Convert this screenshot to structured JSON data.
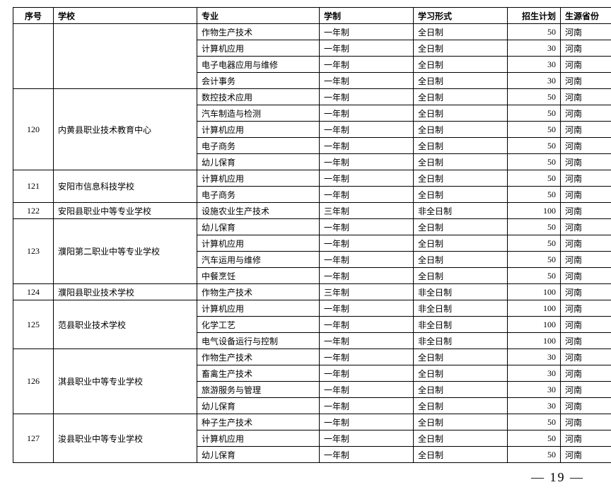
{
  "headers": {
    "seq": "序号",
    "school": "学校",
    "major": "专业",
    "system": "学制",
    "mode": "学习形式",
    "plan": "招生计划",
    "province": "生源省份"
  },
  "groups": [
    {
      "seq": "",
      "school": "",
      "rows": [
        {
          "major": "作物生产技术",
          "system": "一年制",
          "mode": "全日制",
          "plan": "50",
          "province": "河南"
        },
        {
          "major": "计算机应用",
          "system": "一年制",
          "mode": "全日制",
          "plan": "30",
          "province": "河南"
        },
        {
          "major": "电子电器应用与维修",
          "system": "一年制",
          "mode": "全日制",
          "plan": "30",
          "province": "河南"
        },
        {
          "major": "会计事务",
          "system": "一年制",
          "mode": "全日制",
          "plan": "30",
          "province": "河南"
        }
      ]
    },
    {
      "seq": "120",
      "school": "内黄县职业技术教育中心",
      "rows": [
        {
          "major": "数控技术应用",
          "system": "一年制",
          "mode": "全日制",
          "plan": "50",
          "province": "河南"
        },
        {
          "major": "汽车制造与检测",
          "system": "一年制",
          "mode": "全日制",
          "plan": "50",
          "province": "河南"
        },
        {
          "major": "计算机应用",
          "system": "一年制",
          "mode": "全日制",
          "plan": "50",
          "province": "河南"
        },
        {
          "major": "电子商务",
          "system": "一年制",
          "mode": "全日制",
          "plan": "50",
          "province": "河南"
        },
        {
          "major": "幼儿保育",
          "system": "一年制",
          "mode": "全日制",
          "plan": "50",
          "province": "河南"
        }
      ]
    },
    {
      "seq": "121",
      "school": "安阳市信息科技学校",
      "rows": [
        {
          "major": "计算机应用",
          "system": "一年制",
          "mode": "全日制",
          "plan": "50",
          "province": "河南"
        },
        {
          "major": "电子商务",
          "system": "一年制",
          "mode": "全日制",
          "plan": "50",
          "province": "河南"
        }
      ]
    },
    {
      "seq": "122",
      "school": "安阳县职业中等专业学校",
      "rows": [
        {
          "major": "设施农业生产技术",
          "system": "三年制",
          "mode": "非全日制",
          "plan": "100",
          "province": "河南"
        }
      ]
    },
    {
      "seq": "123",
      "school": "濮阳第二职业中等专业学校",
      "rows": [
        {
          "major": "幼儿保育",
          "system": "一年制",
          "mode": "全日制",
          "plan": "50",
          "province": "河南"
        },
        {
          "major": "计算机应用",
          "system": "一年制",
          "mode": "全日制",
          "plan": "50",
          "province": "河南"
        },
        {
          "major": "汽车运用与维修",
          "system": "一年制",
          "mode": "全日制",
          "plan": "50",
          "province": "河南"
        },
        {
          "major": "中餐烹饪",
          "system": "一年制",
          "mode": "全日制",
          "plan": "50",
          "province": "河南"
        }
      ]
    },
    {
      "seq": "124",
      "school": "濮阳县职业技术学校",
      "rows": [
        {
          "major": "作物生产技术",
          "system": "三年制",
          "mode": "非全日制",
          "plan": "100",
          "province": "河南"
        }
      ]
    },
    {
      "seq": "125",
      "school": "范县职业技术学校",
      "rows": [
        {
          "major": "计算机应用",
          "system": "一年制",
          "mode": "非全日制",
          "plan": "100",
          "province": "河南"
        },
        {
          "major": "化学工艺",
          "system": "一年制",
          "mode": "非全日制",
          "plan": "100",
          "province": "河南"
        },
        {
          "major": "电气设备运行与控制",
          "system": "一年制",
          "mode": "非全日制",
          "plan": "100",
          "province": "河南"
        }
      ]
    },
    {
      "seq": "126",
      "school": "淇县职业中等专业学校",
      "rows": [
        {
          "major": "作物生产技术",
          "system": "一年制",
          "mode": "全日制",
          "plan": "30",
          "province": "河南"
        },
        {
          "major": "畜禽生产技术",
          "system": "一年制",
          "mode": "全日制",
          "plan": "30",
          "province": "河南"
        },
        {
          "major": "旅游服务与管理",
          "system": "一年制",
          "mode": "全日制",
          "plan": "30",
          "province": "河南"
        },
        {
          "major": "幼儿保育",
          "system": "一年制",
          "mode": "全日制",
          "plan": "30",
          "province": "河南"
        }
      ]
    },
    {
      "seq": "127",
      "school": "浚县职业中等专业学校",
      "rows": [
        {
          "major": "种子生产技术",
          "system": "一年制",
          "mode": "全日制",
          "plan": "50",
          "province": "河南"
        },
        {
          "major": "计算机应用",
          "system": "一年制",
          "mode": "全日制",
          "plan": "50",
          "province": "河南"
        },
        {
          "major": "幼儿保育",
          "system": "一年制",
          "mode": "全日制",
          "plan": "50",
          "province": "河南"
        }
      ]
    }
  ],
  "page_number": "— 19 —"
}
